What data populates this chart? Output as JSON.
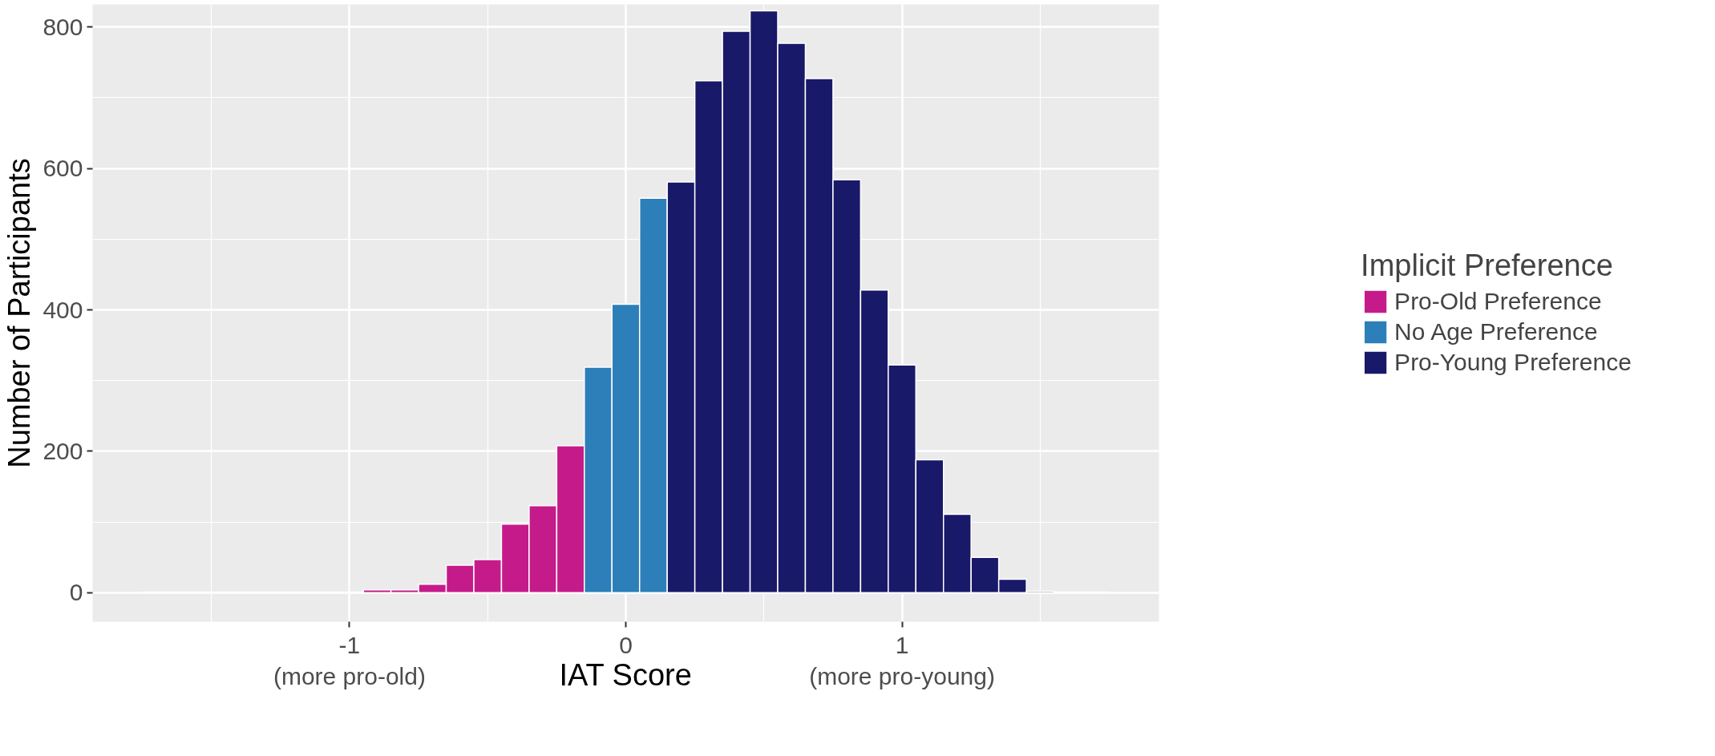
{
  "chart_data": {
    "type": "histogram",
    "xlabel": "IAT Score",
    "ylabel": "Number of Participants",
    "legend_title": "Implicit Preference",
    "legend": "right",
    "grid": true,
    "bins": [
      -1.75,
      -1.65,
      -1.55,
      -1.45,
      -1.35,
      -1.25,
      -1.15,
      -1.05,
      -0.95,
      -0.85,
      -0.75,
      -0.65,
      -0.55,
      -0.45,
      -0.35,
      -0.25,
      -0.15,
      -0.05,
      0.05,
      0.15,
      0.25,
      0.35,
      0.45,
      0.55,
      0.65,
      0.75,
      0.85,
      0.95,
      1.05,
      1.15,
      1.25,
      1.35,
      1.45,
      1.55,
      1.65,
      1.75
    ],
    "series": [
      {
        "name": "Pro-Old Preference",
        "color": "#c51b8a",
        "values": [
          1,
          1,
          1,
          1,
          1,
          1,
          1,
          1,
          4,
          4,
          12,
          39,
          47,
          97,
          123,
          208,
          null,
          null,
          null,
          null,
          null,
          null,
          null,
          null,
          null,
          null,
          null,
          null,
          null,
          null,
          null,
          null,
          null,
          null,
          null
        ]
      },
      {
        "name": "No Age Preference",
        "color": "#2c7fb8",
        "values": [
          null,
          null,
          null,
          null,
          null,
          null,
          null,
          null,
          null,
          null,
          null,
          null,
          null,
          null,
          null,
          null,
          319,
          408,
          558,
          null,
          null,
          null,
          null,
          null,
          null,
          null,
          null,
          null,
          null,
          null,
          null,
          null,
          null,
          null,
          null
        ]
      },
      {
        "name": "Pro-Young Preference",
        "color": "#191969",
        "values": [
          null,
          null,
          null,
          null,
          null,
          null,
          null,
          null,
          null,
          null,
          null,
          null,
          null,
          null,
          null,
          null,
          null,
          null,
          null,
          581,
          724,
          794,
          823,
          777,
          727,
          584,
          428,
          322,
          188,
          111,
          50,
          19,
          2,
          1,
          1
        ]
      }
    ],
    "xlim": [
      -1.93,
      1.93
    ],
    "ylim": [
      -41,
      832
    ],
    "xticks": [
      {
        "value": -1,
        "label": "-1\n(more pro-old)"
      },
      0,
      {
        "value": 1,
        "label": "1\n(more pro-young)"
      }
    ],
    "yticks": [
      0,
      200,
      400,
      600,
      800
    ]
  }
}
